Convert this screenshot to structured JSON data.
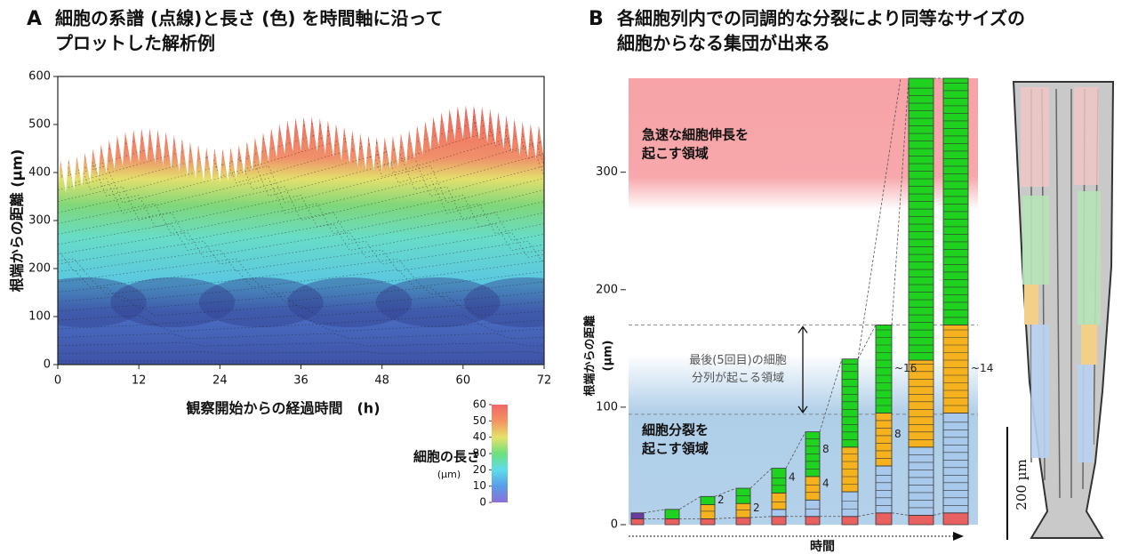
{
  "panels": [
    {
      "letter": "A",
      "title": [
        "細胞の系譜 (点線)と長さ (色) を時間軸に沿って",
        "プロットした解析例"
      ]
    },
    {
      "letter": "B",
      "title": [
        "各細胞列内での同調的な分裂により同等なサイズの",
        "細胞からなる集団が出来る"
      ]
    }
  ],
  "chart_data": [
    {
      "type": "heatmap",
      "xlabel": "観察開始からの経過時間　(h)",
      "ylabel": "根端からの距離 (µm)",
      "xlim": [
        0,
        72
      ],
      "xticks": [
        0,
        12,
        24,
        36,
        48,
        60,
        72
      ],
      "ylim": [
        0,
        600
      ],
      "yticks": [
        0,
        100,
        200,
        300,
        400,
        500,
        600
      ],
      "colorbar": {
        "label": "細胞の長さ",
        "unit": "(µm)",
        "lim": [
          0,
          60
        ],
        "ticks": [
          0,
          10,
          20,
          30,
          40,
          50,
          60
        ],
        "colors": [
          "#8a70d8",
          "#5a9ce8",
          "#5edcea",
          "#6ee07c",
          "#e6e26a",
          "#f29262",
          "#f06868"
        ]
      }
    },
    {
      "type": "stacked-bar",
      "xlabel": "時間",
      "ylabel": [
        "根端からの距離",
        "(µm)"
      ],
      "ylim": [
        0,
        380
      ],
      "yticks": [
        0,
        100,
        200,
        300
      ],
      "categories": [
        null,
        null,
        null,
        null,
        null,
        null,
        null,
        null,
        null,
        null
      ],
      "series": [
        {
          "color": "#e8605f",
          "values": [
            5,
            5,
            5,
            6,
            7,
            7,
            7,
            10,
            8,
            10
          ]
        },
        {
          "color": "#6a3d9e",
          "values": [
            5,
            null,
            null,
            null,
            null,
            null,
            null,
            null,
            null,
            null
          ]
        },
        {
          "color": "#a8c8ec",
          "values": [
            null,
            null,
            null,
            null,
            6,
            14,
            21,
            40,
            58,
            85
          ]
        },
        {
          "color": "#f5b21e",
          "values": [
            null,
            null,
            12,
            12,
            14,
            20,
            38,
            45,
            74,
            75
          ]
        },
        {
          "color": "#1fd21f",
          "values": [
            null,
            8,
            7,
            13,
            21,
            38,
            75,
            75,
            240,
            210
          ]
        }
      ],
      "regions": [
        {
          "label": [
            "急速な細胞伸長を",
            "起こす領域"
          ],
          "from": 268,
          "to": 380,
          "color": "#f7a3a7"
        },
        {
          "label": [
            "細胞分裂を",
            "起こす領域"
          ],
          "from": 0,
          "to": 145,
          "color": "#a6c9e6"
        }
      ],
      "reference_lines": [
        94,
        170
      ],
      "reference_label": [
        "最後(5回目)の細胞",
        "分列が起こる領域"
      ],
      "annotations": [
        {
          "text": "2",
          "column": 2,
          "y": 21
        },
        {
          "text": "2",
          "column": 3,
          "y": 14
        },
        {
          "text": "4",
          "column": 4,
          "y": 40
        },
        {
          "text": "4",
          "column": 5,
          "y": 35
        },
        {
          "text": "8",
          "column": 5,
          "y": 64
        },
        {
          "text": "8",
          "column": 7,
          "y": 77
        },
        {
          "text": "~16",
          "column": 7,
          "y": 133
        },
        {
          "text": "~14",
          "column": 9,
          "y": 133
        }
      ]
    }
  ],
  "micrograph": {
    "scale_bar_label": "200 µm"
  }
}
